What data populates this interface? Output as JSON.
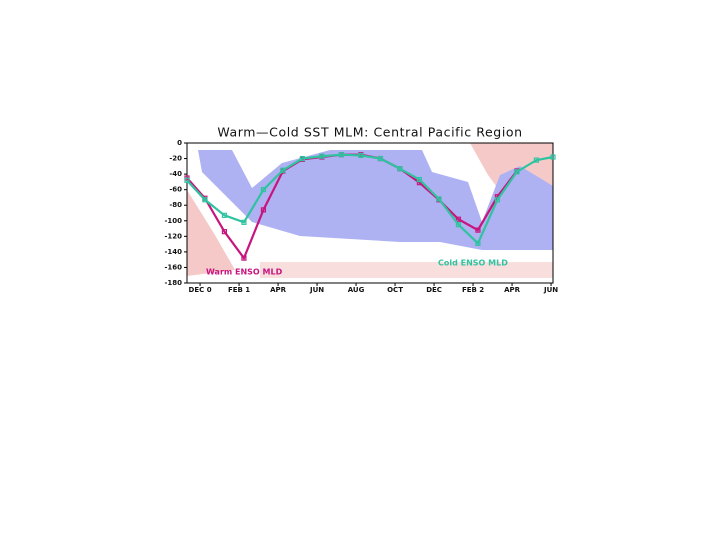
{
  "chart_data": {
    "type": "line",
    "title": "Warm—Cold SST MLM: Central Pacific Region",
    "x": [],
    "xlim": [
      -0.67,
      18.1
    ],
    "xticks": [
      {
        "value": 0,
        "label": "DEC 0"
      },
      {
        "value": 2,
        "label": "FEB 1"
      },
      {
        "value": 4,
        "label": "APR"
      },
      {
        "value": 6,
        "label": "JUN"
      },
      {
        "value": 8,
        "label": "AUG"
      },
      {
        "value": 10,
        "label": "OCT"
      },
      {
        "value": 12,
        "label": "DEC"
      },
      {
        "value": 14,
        "label": "FEB 2"
      },
      {
        "value": 16,
        "label": "APR"
      },
      {
        "value": 18,
        "label": "JUN"
      }
    ],
    "ylim": [
      -180,
      0
    ],
    "yticks": [
      0,
      -20,
      -40,
      -60,
      -80,
      -100,
      -120,
      -140,
      -160,
      -180
    ],
    "series": [
      {
        "name": "Warm ENSO MLD",
        "color": "#c8157e",
        "x": [
          -0.67,
          0.25,
          1.25,
          2.25,
          3.25,
          4.25,
          5.25,
          6.25,
          7.25,
          8.25,
          9.25,
          10.25,
          11.25,
          12.25,
          13.25,
          14.25,
          15.25,
          16.25
        ],
        "values": [
          -45,
          -71,
          -114,
          -148,
          -86,
          -36,
          -21,
          -18,
          -15,
          -15,
          -20,
          -33,
          -51,
          -73,
          -98,
          -112,
          -69,
          -36
        ]
      },
      {
        "name": "Cold ENSO MLD",
        "color": "#2fc3a0",
        "x": [
          -0.67,
          0.25,
          1.25,
          2.25,
          3.25,
          4.25,
          5.25,
          6.25,
          7.25,
          8.25,
          9.25,
          10.25,
          11.25,
          12.25,
          13.25,
          14.25,
          15.25,
          16.25,
          17.25,
          18.1
        ],
        "values": [
          -48,
          -73,
          -93,
          -102,
          -60,
          -35,
          -20,
          -17,
          -15,
          -16,
          -20,
          -33,
          -47,
          -72,
          -105,
          -129,
          -73,
          -37,
          -22,
          -18
        ]
      }
    ]
  }
}
